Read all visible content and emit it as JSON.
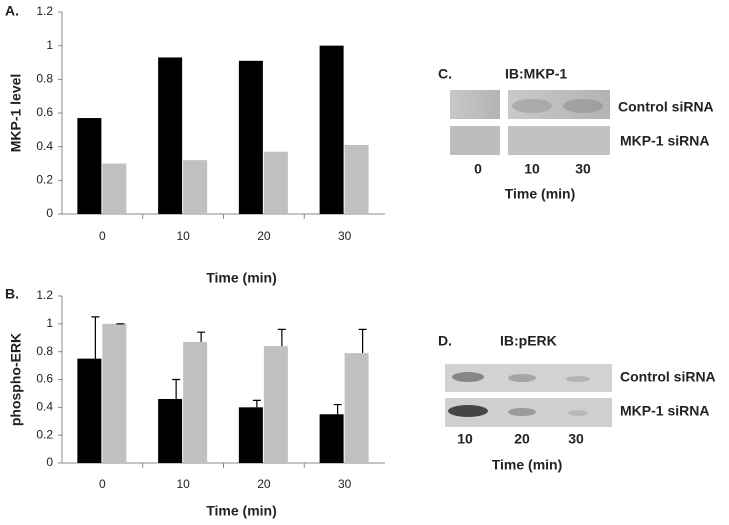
{
  "chart_data": [
    {
      "type": "bar",
      "panel": "A.",
      "y_label": "MKP-1 level",
      "x_label": "Time (min)",
      "categories": [
        "0",
        "10",
        "20",
        "30"
      ],
      "series": [
        {
          "color": "#000000",
          "values": [
            0.57,
            0.93,
            0.91,
            1.0
          ]
        },
        {
          "color": "#c0c0c0",
          "values": [
            0.3,
            0.32,
            0.37,
            0.41
          ]
        }
      ],
      "ylim": [
        0,
        1.2
      ],
      "yticks": [
        0,
        0.2,
        0.4,
        0.6,
        0.8,
        1,
        1.2
      ]
    },
    {
      "type": "bar",
      "panel": "B.",
      "y_label": "phospho-ERK",
      "x_label": "Time (min)",
      "categories": [
        "0",
        "10",
        "20",
        "30"
      ],
      "series": [
        {
          "color": "#000000",
          "values": [
            0.75,
            0.46,
            0.4,
            0.35
          ],
          "errors": [
            0.3,
            0.14,
            0.05,
            0.07
          ]
        },
        {
          "color": "#c0c0c0",
          "values": [
            1.0,
            0.87,
            0.84,
            0.79
          ],
          "errors": [
            0,
            0.07,
            0.12,
            0.17
          ]
        }
      ],
      "ylim": [
        0,
        1.2
      ],
      "yticks": [
        0,
        0.2,
        0.4,
        0.6,
        0.8,
        1,
        1.2
      ]
    }
  ],
  "blots": [
    {
      "panel": "C.",
      "title": "IB:MKP-1",
      "rows": [
        "Control siRNA",
        "MKP-1 siRNA"
      ],
      "lanes": [
        "0",
        "10",
        "30"
      ],
      "x_label": "Time (min)"
    },
    {
      "panel": "D.",
      "title": "IB:pERK",
      "rows": [
        "Control siRNA",
        "MKP-1 siRNA"
      ],
      "lanes": [
        "10",
        "20",
        "30"
      ],
      "x_label": "Time (min)"
    }
  ]
}
